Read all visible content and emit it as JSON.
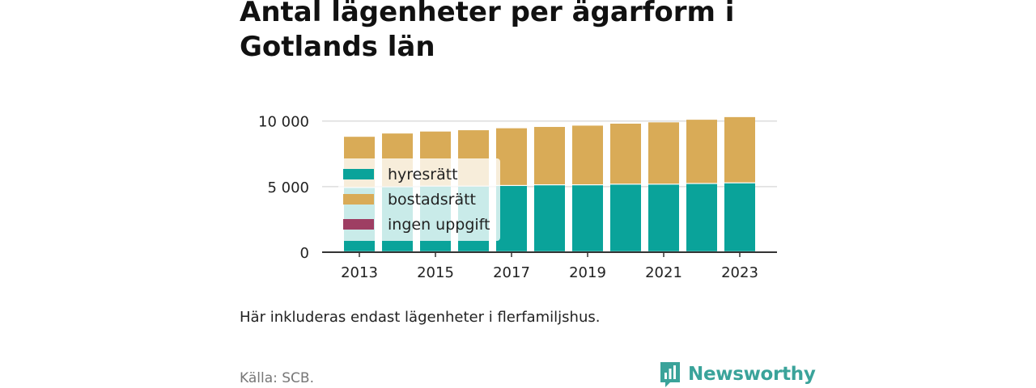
{
  "title": "Antal lägenheter per ägarform i Gotlands län",
  "note": "Här inkluderas endast lägenheter i flerfamiljshus.",
  "source": "Källa: SCB.",
  "brand": {
    "name": "Newsworthy",
    "icon": "newsworthy-logo-icon"
  },
  "colors": {
    "hyresratt": "#0aa39a",
    "bostadsratt": "#d9ab57",
    "ingen_uppgift": "#9e3e63",
    "grid": "#dddddd",
    "axis": "#333333"
  },
  "chart_data": {
    "type": "bar",
    "stacked": true,
    "categories": [
      2013,
      2014,
      2015,
      2016,
      2017,
      2018,
      2019,
      2020,
      2021,
      2022,
      2023
    ],
    "x_tick_labels": [
      "2013",
      "2015",
      "2017",
      "2019",
      "2021",
      "2023"
    ],
    "y_ticks": [
      0,
      5000,
      10000
    ],
    "y_tick_labels": [
      "0",
      "5 000",
      "10 000"
    ],
    "ylim": [
      0,
      10600
    ],
    "grid": true,
    "legend_position": "top-left",
    "series": [
      {
        "name": "hyresrätt",
        "color": "#0aa39a",
        "values": [
          4900,
          4950,
          5000,
          5000,
          5050,
          5100,
          5100,
          5150,
          5150,
          5200,
          5250
        ]
      },
      {
        "name": "bostadsrätt",
        "color": "#d9ab57",
        "values": [
          3900,
          4100,
          4200,
          4300,
          4400,
          4450,
          4550,
          4650,
          4750,
          4900,
          5050
        ]
      },
      {
        "name": "ingen uppgift",
        "color": "#9e3e63",
        "values": [
          0,
          0,
          0,
          0,
          0,
          0,
          0,
          0,
          0,
          0,
          0
        ]
      }
    ]
  }
}
